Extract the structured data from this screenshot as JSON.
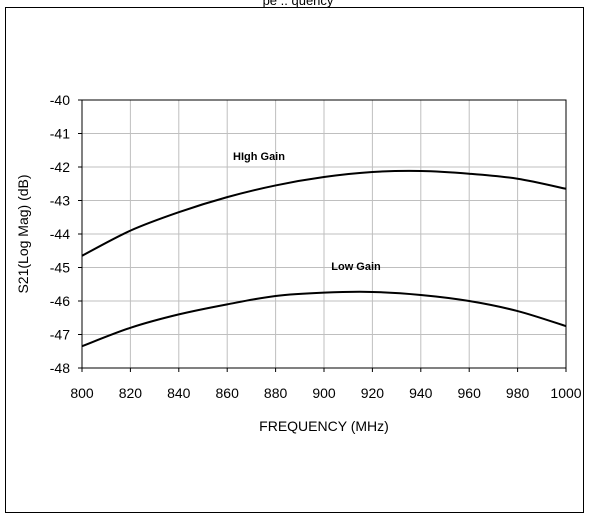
{
  "chart_data": {
    "type": "line",
    "top_caption": "pe       ..   quency",
    "xlabel": "FREQUENCY  (MHz)",
    "ylabel": "S21(Log Mag) (dB)",
    "xlim": [
      800,
      1000
    ],
    "ylim": [
      -48,
      -40
    ],
    "x_ticks": [
      "800",
      "820",
      "840",
      "860",
      "880",
      "900",
      "920",
      "940",
      "960",
      "980",
      "1000"
    ],
    "y_ticks": [
      "-40",
      "-41",
      "-42",
      "-43",
      "-44",
      "-45",
      "-46",
      "-47",
      "-48"
    ],
    "grid": true,
    "series": [
      {
        "name": "HIgh Gain",
        "x": [
          800,
          820,
          840,
          860,
          880,
          900,
          920,
          940,
          960,
          980,
          1000
        ],
        "y": [
          -44.65,
          -43.9,
          -43.35,
          -42.9,
          -42.55,
          -42.3,
          -42.15,
          -42.12,
          -42.2,
          -42.35,
          -42.65
        ]
      },
      {
        "name": "Low Gain",
        "x": [
          800,
          820,
          840,
          860,
          880,
          900,
          920,
          940,
          960,
          980,
          1000
        ],
        "y": [
          -47.35,
          -46.8,
          -46.4,
          -46.1,
          -45.85,
          -45.75,
          -45.73,
          -45.82,
          -46.0,
          -46.3,
          -46.75
        ]
      }
    ],
    "colors": {
      "line": "#000000",
      "grid": "#bfbfbf",
      "frame": "#000000"
    }
  }
}
